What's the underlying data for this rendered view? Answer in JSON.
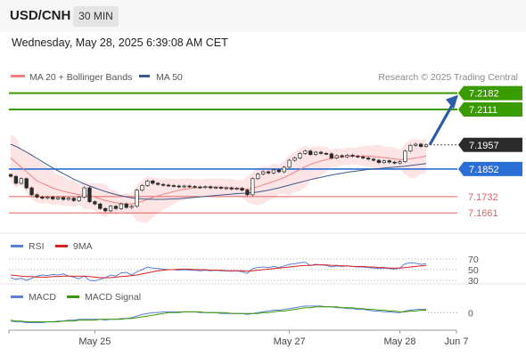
{
  "header": {
    "symbol": "USD/CNH",
    "timeframe": "30 MIN",
    "datetime": "Wednesday, May 28, 2025 6:39:08 AM CET"
  },
  "colors": {
    "ma20": "#f08080",
    "ma50": "#3a5a8c",
    "resistance": "#3a9b00",
    "support": "#2a6fd6",
    "minor_support": "#e06060",
    "bollinger_fill": "#fcdcdc",
    "rsi": "#5b7fd6",
    "rsi_ma": "#d62020",
    "macd": "#5b7fd6",
    "macd_signal": "#3a9b00",
    "arrow": "#2d5da8"
  },
  "chart_data": [
    {
      "type": "candlestick",
      "legend": [
        "MA 20 + Bollinger Bands",
        "MA 50"
      ],
      "watermark": "Research © 2025 Trading Central",
      "ylim": [
        7.16,
        7.22
      ],
      "x_ticks": [
        "May 25",
        "May 27",
        "May 28",
        "Jun 7"
      ],
      "last_price": 7.1957,
      "levels": [
        {
          "value": 7.2182,
          "label": "7.2182",
          "kind": "resistance"
        },
        {
          "value": 7.2111,
          "label": "7.2111",
          "kind": "resistance"
        },
        {
          "value": 7.1957,
          "label": "7.1957",
          "kind": "last"
        },
        {
          "value": 7.1852,
          "label": "7.1852",
          "kind": "support"
        },
        {
          "value": 7.1732,
          "label": "7.1732",
          "kind": "minor"
        },
        {
          "value": 7.1661,
          "label": "7.1661",
          "kind": "minor"
        }
      ],
      "close": [
        7.182,
        7.179,
        7.181,
        7.177,
        7.174,
        7.173,
        7.1725,
        7.173,
        7.1722,
        7.1728,
        7.172,
        7.1725,
        7.1715,
        7.173,
        7.177,
        7.171,
        7.17,
        7.168,
        7.167,
        7.169,
        7.168,
        7.17,
        7.1685,
        7.169,
        7.176,
        7.178,
        7.18,
        7.179,
        7.1785,
        7.1782,
        7.178,
        7.1778,
        7.1775,
        7.1778,
        7.1776,
        7.1774,
        7.1772,
        7.1775,
        7.177,
        7.1772,
        7.1768,
        7.177,
        7.1765,
        7.1768,
        7.176,
        7.174,
        7.181,
        7.183,
        7.184,
        7.1835,
        7.1848,
        7.184,
        7.186,
        7.189,
        7.19,
        7.192,
        7.193,
        7.1915,
        7.1925,
        7.192,
        7.1918,
        7.19,
        7.191,
        7.1905,
        7.1912,
        7.1908,
        7.1905,
        7.19,
        7.1895,
        7.189,
        7.188,
        7.1888,
        7.1882,
        7.1878,
        7.1884,
        7.193,
        7.1955,
        7.196,
        7.195,
        7.1957
      ],
      "ma20": [
        7.19,
        7.188,
        7.186,
        7.184,
        7.182,
        7.18,
        7.179,
        7.178,
        7.177,
        7.1762,
        7.1755,
        7.175,
        7.1745,
        7.174,
        7.1738,
        7.1735,
        7.173,
        7.1722,
        7.1715,
        7.171,
        7.1705,
        7.1702,
        7.17,
        7.17,
        7.1705,
        7.1712,
        7.172,
        7.1728,
        7.1735,
        7.1742,
        7.1748,
        7.1754,
        7.176,
        7.1764,
        7.1767,
        7.177,
        7.1772,
        7.1773,
        7.1774,
        7.1774,
        7.1773,
        7.1772,
        7.177,
        7.1768,
        7.1766,
        7.1764,
        7.1768,
        7.1775,
        7.1783,
        7.179,
        7.1798,
        7.1806,
        7.1815,
        7.1826,
        7.1838,
        7.185,
        7.1862,
        7.1872,
        7.188,
        7.1887,
        7.1893,
        7.1898,
        7.1902,
        7.1905,
        7.1907,
        7.1908,
        7.1909,
        7.1909,
        7.1908,
        7.1906,
        7.1904,
        7.1902,
        7.1899,
        7.1896,
        7.1893,
        7.1893,
        7.1896,
        7.19,
        7.1904,
        7.1908
      ],
      "ma50": [
        7.196,
        7.195,
        7.1938,
        7.1925,
        7.1912,
        7.1898,
        7.1884,
        7.187,
        7.1857,
        7.1844,
        7.1832,
        7.182,
        7.1808,
        7.1797,
        7.1787,
        7.1778,
        7.177,
        7.1762,
        7.1754,
        7.1747,
        7.1741,
        7.1736,
        7.1731,
        7.1727,
        7.1724,
        7.1722,
        7.1721,
        7.172,
        7.172,
        7.172,
        7.1721,
        7.1722,
        7.1723,
        7.1725,
        7.1727,
        7.1729,
        7.1731,
        7.1733,
        7.1735,
        7.1737,
        7.1739,
        7.1741,
        7.1743,
        7.1745,
        7.1746,
        7.1747,
        7.1749,
        7.1752,
        7.1756,
        7.176,
        7.1765,
        7.177,
        7.1776,
        7.1782,
        7.1788,
        7.1794,
        7.18,
        7.1806,
        7.1811,
        7.1816,
        7.1821,
        7.1826,
        7.183,
        7.1834,
        7.1838,
        7.1841,
        7.1844,
        7.1847,
        7.185,
        7.1852,
        7.1854,
        7.1856,
        7.1858,
        7.186,
        7.1862,
        7.1864,
        7.1867,
        7.187,
        7.1873,
        7.1876
      ]
    },
    {
      "type": "line",
      "legend": [
        "RSI",
        "9MA"
      ],
      "ylim": [
        25,
        75
      ],
      "y_ticks": [
        "70",
        "50",
        "30"
      ],
      "rsi": [
        35,
        32,
        34,
        30,
        34,
        38,
        40,
        39,
        41,
        40,
        42,
        38,
        36,
        33,
        38,
        30,
        29,
        32,
        35,
        40,
        38,
        44,
        45,
        40,
        46,
        50,
        55,
        53,
        52,
        51,
        50,
        50,
        49,
        50,
        49,
        49,
        48,
        49,
        48,
        49,
        48,
        48,
        47,
        48,
        46,
        43,
        52,
        54,
        55,
        54,
        56,
        54,
        57,
        60,
        61,
        63,
        64,
        58,
        60,
        59,
        58,
        55,
        57,
        56,
        57,
        56,
        55,
        55,
        54,
        53,
        52,
        53,
        52,
        51,
        53,
        61,
        63,
        62,
        60,
        61
      ],
      "ma9": [
        40,
        39,
        38,
        37,
        37,
        36,
        36,
        36,
        37,
        37,
        38,
        38,
        38,
        38,
        38,
        37,
        36,
        35,
        35,
        35,
        36,
        37,
        38,
        39,
        40,
        42,
        44,
        46,
        48,
        49,
        50,
        50,
        51,
        51,
        51,
        50,
        50,
        50,
        49,
        49,
        49,
        48,
        48,
        48,
        48,
        47,
        48,
        49,
        50,
        51,
        52,
        53,
        54,
        55,
        56,
        57,
        58,
        58,
        59,
        59,
        59,
        58,
        58,
        57,
        57,
        56,
        56,
        56,
        55,
        55,
        54,
        54,
        53,
        53,
        53,
        54,
        55,
        56,
        57,
        58
      ]
    },
    {
      "type": "line",
      "legend": [
        "MACD",
        "MACD Signal"
      ],
      "ylim": [
        -0.002,
        0.001
      ],
      "y_ticks": [
        "0"
      ],
      "macd": [
        -0.001,
        -0.0011,
        -0.0011,
        -0.0012,
        -0.0012,
        -0.0012,
        -0.0012,
        -0.0011,
        -0.0011,
        -0.001,
        -0.001,
        -0.0009,
        -0.0009,
        -0.0008,
        -0.0008,
        -0.0008,
        -0.0008,
        -0.0008,
        -0.0009,
        -0.0008,
        -0.0008,
        -0.0007,
        -0.0007,
        -0.0006,
        -0.0004,
        -0.0002,
        -0.0001,
        0.0,
        0.0,
        0.0001,
        0.0001,
        0.0001,
        0.0001,
        0.0001,
        0.0001,
        0.0001,
        0.0,
        0.0,
        0.0,
        0.0,
        -0.0001,
        -0.0001,
        -0.0001,
        -0.0001,
        -0.0001,
        -0.0002,
        -0.0001,
        0.0,
        0.0001,
        0.0002,
        0.0003,
        0.0003,
        0.0004,
        0.0005,
        0.0006,
        0.0007,
        0.0008,
        0.0008,
        0.0008,
        0.0008,
        0.0007,
        0.0007,
        0.0006,
        0.0006,
        0.0005,
        0.0005,
        0.0004,
        0.0004,
        0.0003,
        0.0002,
        0.0002,
        0.0001,
        0.0001,
        0.0,
        0.0,
        0.0002,
        0.0003,
        0.0004,
        0.0004,
        0.0004
      ],
      "signal": [
        -0.0009,
        -0.001,
        -0.001,
        -0.0011,
        -0.0011,
        -0.0011,
        -0.0011,
        -0.0011,
        -0.0011,
        -0.0011,
        -0.001,
        -0.001,
        -0.001,
        -0.0009,
        -0.0009,
        -0.0009,
        -0.0009,
        -0.0008,
        -0.0008,
        -0.0008,
        -0.0008,
        -0.0008,
        -0.0007,
        -0.0007,
        -0.0006,
        -0.0005,
        -0.0004,
        -0.0003,
        -0.0002,
        -0.0001,
        0.0,
        0.0,
        0.0,
        0.0001,
        0.0001,
        0.0001,
        0.0001,
        0.0,
        0.0,
        0.0,
        0.0,
        0.0,
        -0.0001,
        -0.0001,
        -0.0001,
        -0.0001,
        -0.0001,
        -0.0001,
        0.0,
        0.0,
        0.0001,
        0.0002,
        0.0002,
        0.0003,
        0.0004,
        0.0005,
        0.0006,
        0.0006,
        0.0007,
        0.0007,
        0.0007,
        0.0007,
        0.0007,
        0.0006,
        0.0006,
        0.0006,
        0.0005,
        0.0005,
        0.0004,
        0.0004,
        0.0003,
        0.0003,
        0.0002,
        0.0002,
        0.0001,
        0.0001,
        0.0002,
        0.0002,
        0.0003,
        0.0003
      ]
    }
  ]
}
